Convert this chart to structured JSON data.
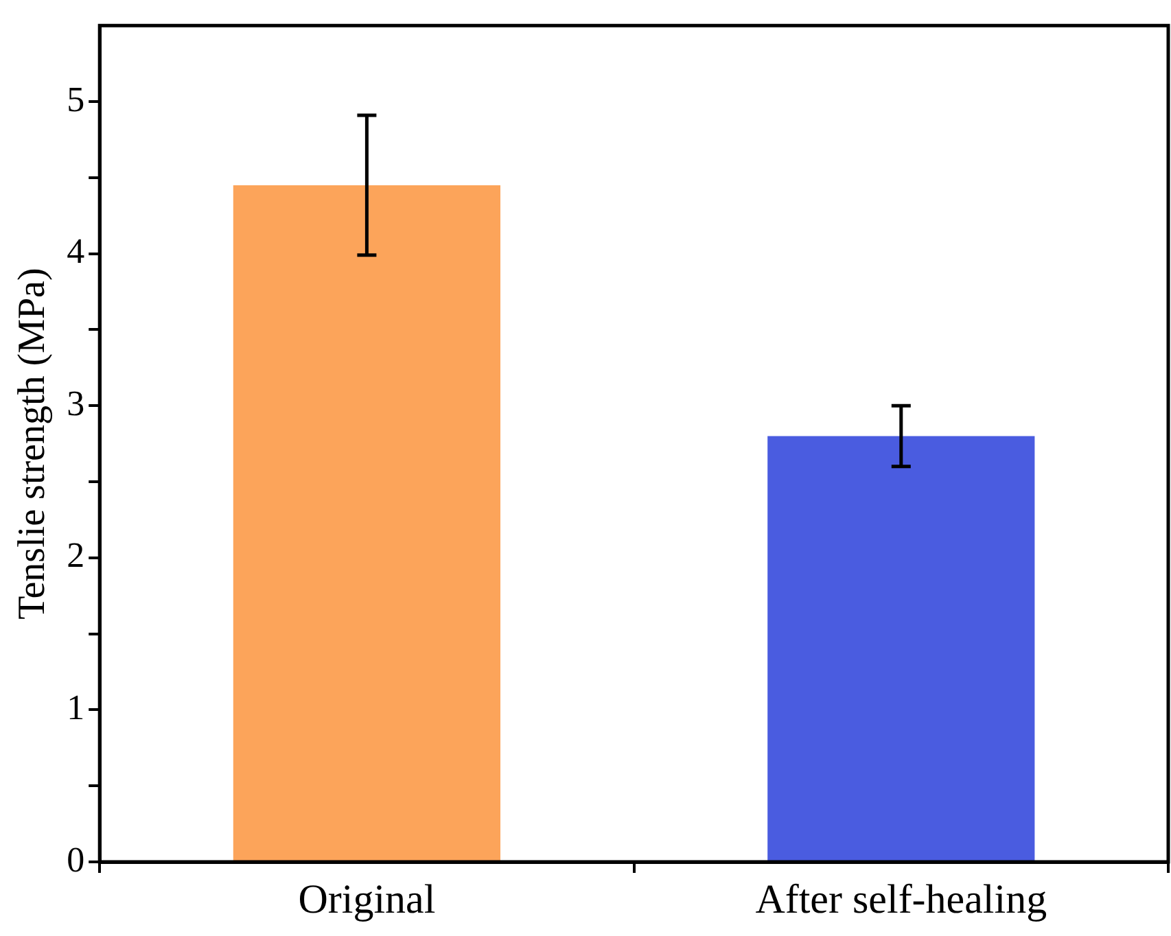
{
  "chart_data": {
    "type": "bar",
    "ylabel": "Tenslie strength (MPa)",
    "categories": [
      "Original",
      "After self-healing"
    ],
    "values": [
      4.45,
      2.8
    ],
    "colors": [
      "#fca45a",
      "#4a5ce0"
    ],
    "errors": [
      0.46,
      0.2
    ],
    "ylim": [
      0,
      5.5
    ],
    "yticks": [
      0,
      {
        "value": 0.5,
        "label": null
      },
      1,
      {
        "value": 1.5,
        "label": null
      },
      2,
      {
        "value": 2.5,
        "label": null
      },
      3,
      {
        "value": 3.5,
        "label": null
      },
      4,
      {
        "value": 4.5,
        "label": null
      },
      5
    ],
    "grid": false,
    "legend": false
  }
}
